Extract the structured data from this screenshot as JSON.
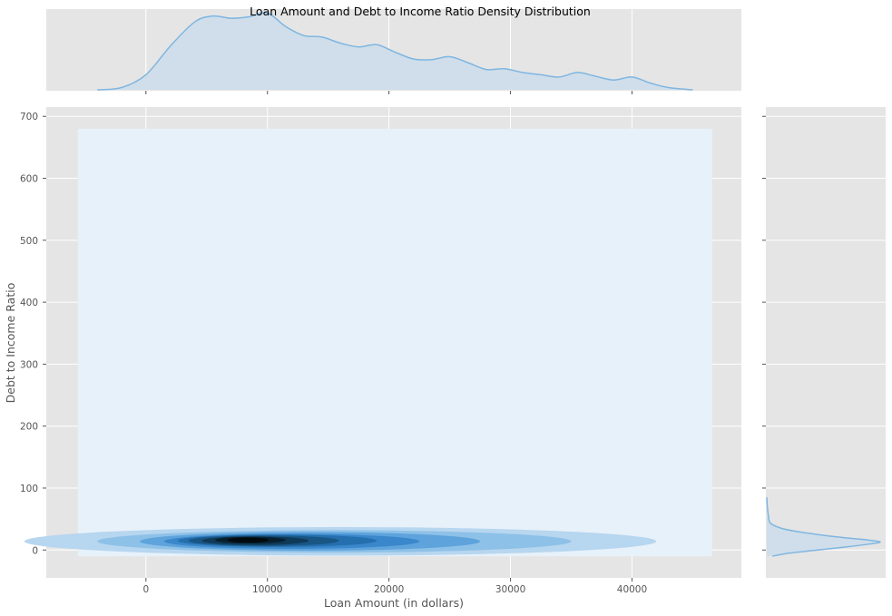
{
  "chart_data": {
    "type": "kde-joint",
    "title": "Loan Amount and Debt to Income Ratio Density Distribution",
    "xlabel": "Loan Amount (in dollars)",
    "ylabel": "Debt to Income Ratio",
    "xlim": [
      -8200,
      49000
    ],
    "ylim": [
      -45,
      715
    ],
    "xticks": [
      0,
      10000,
      20000,
      30000,
      40000
    ],
    "yticks": [
      0,
      100,
      200,
      300,
      400,
      500,
      600,
      700
    ],
    "grid": true,
    "colors": {
      "panel_bg": "#e5e5e5",
      "grid": "#ffffff",
      "line": "#7fb6e1",
      "fill": "#cfdeea",
      "tick_text": "#555555",
      "label_text": "#555555",
      "title_text": "#000000"
    },
    "joint": {
      "background_region": {
        "x": [
          -5600,
          46600
        ],
        "y": [
          -10,
          680
        ],
        "color": "#e7f1fa"
      },
      "contour_levels": [
        {
          "cx": 16000,
          "cy": 14,
          "rx": 26000,
          "ry": 23,
          "color": "#b7d6ef"
        },
        {
          "cx": 15500,
          "cy": 14,
          "rx": 19500,
          "ry": 18,
          "color": "#8ec1e8"
        },
        {
          "cx": 13500,
          "cy": 14,
          "rx": 14000,
          "ry": 15,
          "color": "#5ea3db"
        },
        {
          "cx": 12000,
          "cy": 14,
          "rx": 10500,
          "ry": 12,
          "color": "#3a87cb"
        },
        {
          "cx": 10800,
          "cy": 15,
          "rx": 8200,
          "ry": 10,
          "color": "#256fae"
        },
        {
          "cx": 9700,
          "cy": 15,
          "rx": 6200,
          "ry": 8.5,
          "color": "#195683"
        },
        {
          "cx": 9000,
          "cy": 15,
          "rx": 4400,
          "ry": 7,
          "color": "#0f3a59"
        },
        {
          "cx": 8600,
          "cy": 16,
          "rx": 2900,
          "ry": 5.5,
          "color": "#07202f"
        },
        {
          "cx": 8400,
          "cy": 16,
          "rx": 1700,
          "ry": 4,
          "color": "#020a0f"
        }
      ]
    },
    "marginal_x": {
      "x": [
        -4000,
        -2000,
        0,
        2000,
        4000,
        5500,
        7000,
        8500,
        10000,
        11500,
        13000,
        14500,
        16000,
        17500,
        19000,
        20500,
        22000,
        23500,
        25000,
        26500,
        28000,
        29500,
        31000,
        32500,
        34000,
        35500,
        37000,
        38500,
        40000,
        41500,
        43000,
        45000
      ],
      "density": [
        0.0,
        0.03,
        0.2,
        0.58,
        0.9,
        0.98,
        0.95,
        0.97,
        1.02,
        0.84,
        0.72,
        0.7,
        0.62,
        0.57,
        0.6,
        0.5,
        0.41,
        0.4,
        0.44,
        0.36,
        0.27,
        0.28,
        0.23,
        0.2,
        0.17,
        0.23,
        0.18,
        0.13,
        0.17,
        0.09,
        0.03,
        0.0
      ]
    },
    "marginal_y": {
      "y": [
        -10,
        -5,
        0,
        5,
        10,
        13,
        16,
        20,
        25,
        30,
        35,
        40,
        45,
        55,
        70,
        85
      ],
      "density": [
        0.05,
        0.2,
        0.45,
        0.7,
        0.92,
        1.0,
        0.9,
        0.68,
        0.45,
        0.26,
        0.13,
        0.06,
        0.025,
        0.015,
        0.005,
        0.0
      ]
    }
  }
}
